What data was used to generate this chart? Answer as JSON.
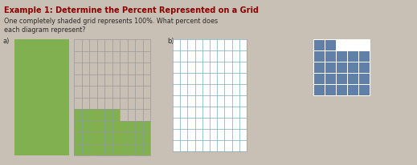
{
  "title_line1": "Example 1: Determine the Percent Represented on a Grid",
  "title_line2": "One completely shaded grid represents 100%. What percent does",
  "title_line3": "each diagram represent?",
  "title_color": "#8B0000",
  "body_color": "#2a2a2a",
  "bg_color": "#c8c0b4",
  "green_color": "#80b050",
  "blue_color": "#6080a8",
  "grid_line_color_a": "#999999",
  "grid_line_color_b": "#7aabbf",
  "label_a": "a)",
  "label_b": "b)",
  "grid_rows": 10,
  "grid_cols": 10,
  "figsize": [
    5.19,
    2.07
  ],
  "dpi": 100
}
